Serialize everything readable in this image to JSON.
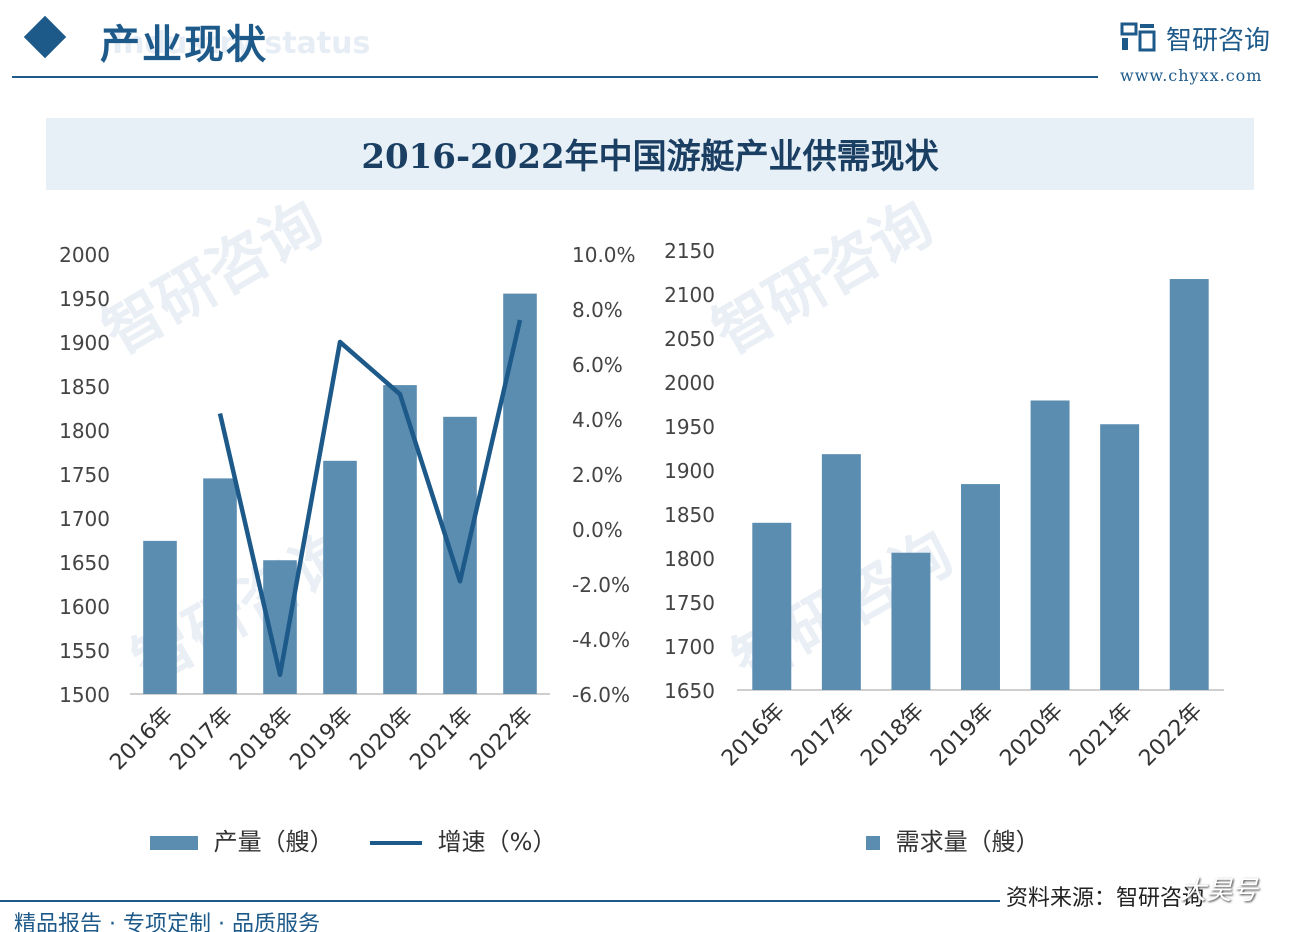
{
  "header": {
    "section_title": "产业现状",
    "section_subtitle": "Industry status",
    "brand_name": "智研咨询",
    "brand_url": "www.chyxx.com"
  },
  "banner_title": "2016-2022年中国游艇产业供需现状",
  "watermark_text": "智研咨询",
  "chart_data": [
    {
      "type": "bar+line",
      "categories": [
        "2016年",
        "2017年",
        "2018年",
        "2019年",
        "2020年",
        "2021年",
        "2022年"
      ],
      "series": [
        {
          "name": "产量（艘）",
          "type": "bar",
          "axis": "left",
          "values": [
            1674,
            1745,
            1652,
            1765,
            1851,
            1815,
            1955
          ],
          "color": "#5b8db0"
        },
        {
          "name": "增速（%）",
          "type": "line",
          "axis": "right",
          "values": [
            null,
            4.2,
            -5.3,
            6.8,
            4.9,
            -1.9,
            7.6
          ],
          "color": "#1d5a8a"
        }
      ],
      "left_axis": {
        "ylim": [
          1500,
          2000
        ],
        "ticks": [
          "1500",
          "1550",
          "1600",
          "1650",
          "1700",
          "1750",
          "1800",
          "1850",
          "1900",
          "1950",
          "2000"
        ]
      },
      "right_axis": {
        "ylim": [
          -6,
          10
        ],
        "ticks": [
          "-6.0%",
          "-4.0%",
          "-2.0%",
          "0.0%",
          "2.0%",
          "4.0%",
          "6.0%",
          "8.0%",
          "10.0%"
        ]
      },
      "legend_position": "bottom"
    },
    {
      "type": "bar",
      "categories": [
        "2016年",
        "2017年",
        "2018年",
        "2019年",
        "2020年",
        "2021年",
        "2022年"
      ],
      "series": [
        {
          "name": "需求量（艘）",
          "values": [
            1840,
            1918,
            1806,
            1884,
            1979,
            1952,
            2117
          ],
          "color": "#5b8db0"
        }
      ],
      "left_axis": {
        "ylim": [
          1650,
          2150
        ],
        "ticks": [
          "1650",
          "1700",
          "1750",
          "1800",
          "1850",
          "1900",
          "1950",
          "2000",
          "2050",
          "2100",
          "2150"
        ]
      },
      "legend_position": "bottom"
    }
  ],
  "footer": {
    "tagline": "精品报告 · 专项定制 · 品质服务",
    "source": "资料来源：智研咨询",
    "corner_mark": "大昊号"
  },
  "colors": {
    "primary": "#1d5a8a",
    "bar": "#5b8db0",
    "banner_bg": "#e8f0f7"
  }
}
